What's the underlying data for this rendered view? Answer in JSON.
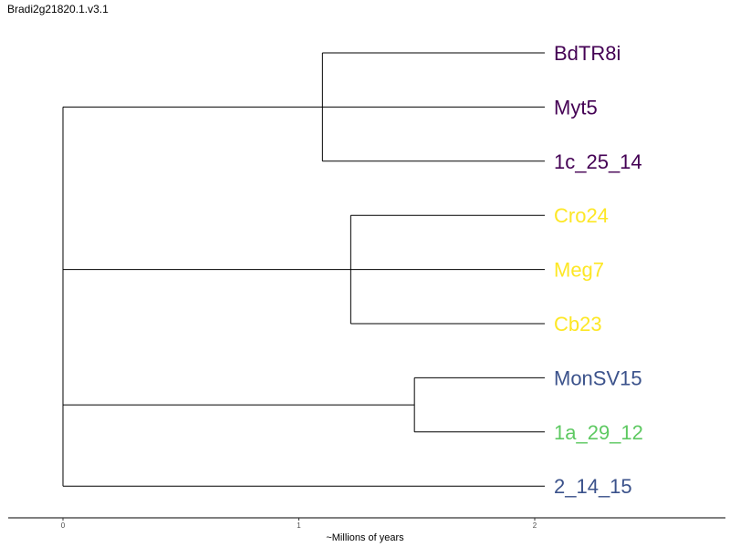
{
  "title": "Bradi2g21820.1.v3.1",
  "axis": {
    "label": "~Millions of years",
    "ticks": [
      {
        "value": 0,
        "label": "0"
      },
      {
        "value": 1,
        "label": "1"
      },
      {
        "value": 2,
        "label": "2"
      }
    ]
  },
  "colors": {
    "purple": "#440154",
    "yellow": "#fde725",
    "blue": "#3b528b",
    "green": "#5ec962",
    "branch": "#000000"
  },
  "leaves": [
    {
      "label": "BdTR8i",
      "color": "#440154"
    },
    {
      "label": "Myt5",
      "color": "#440154"
    },
    {
      "label": "1c_25_14",
      "color": "#440154"
    },
    {
      "label": "Cro24",
      "color": "#fde725"
    },
    {
      "label": "Meg7",
      "color": "#fde725"
    },
    {
      "label": "Cb23",
      "color": "#fde725"
    },
    {
      "label": "MonSV15",
      "color": "#3b528b"
    },
    {
      "label": "1a_29_12",
      "color": "#5ec962"
    },
    {
      "label": "2_14_15",
      "color": "#3b528b"
    }
  ],
  "clades": [
    {
      "members": [
        0,
        1,
        2
      ],
      "age": 1.1
    },
    {
      "members": [
        3,
        4,
        5
      ],
      "age": 1.22
    },
    {
      "members": [
        6,
        7
      ],
      "age": 1.49
    }
  ]
}
